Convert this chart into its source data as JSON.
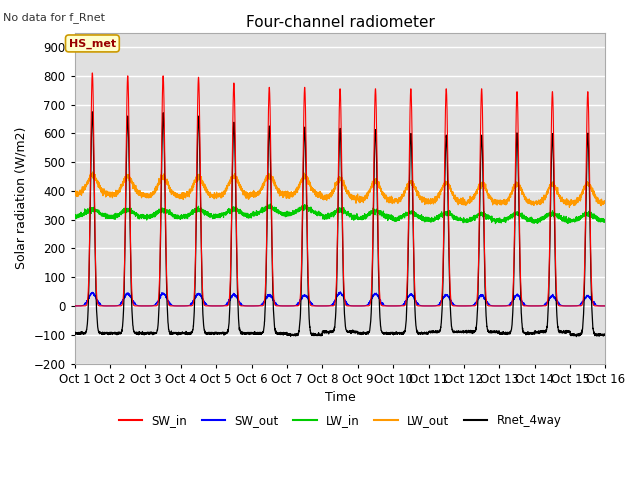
{
  "title": "Four-channel radiometer",
  "top_left_text": "No data for f_Rnet",
  "ylabel": "Solar radiation (W/m2)",
  "xlabel": "Time",
  "ylim": [
    -200,
    950
  ],
  "yticks": [
    -200,
    -100,
    0,
    100,
    200,
    300,
    400,
    500,
    600,
    700,
    800,
    900
  ],
  "xtick_labels": [
    "Oct 1",
    "Oct 2",
    "Oct 3",
    "Oct 4",
    "Oct 5",
    "Oct 6",
    "Oct 7",
    "Oct 8",
    "Oct 9",
    "Oct 10",
    "Oct 11",
    "Oct 12",
    "Oct 13",
    "Oct 14",
    "Oct 15",
    "Oct 16"
  ],
  "num_days": 15,
  "pts_per_day": 288,
  "legend": [
    {
      "label": "SW_in",
      "color": "#ff0000"
    },
    {
      "label": "SW_out",
      "color": "#0000ff"
    },
    {
      "label": "LW_in",
      "color": "#00cc00"
    },
    {
      "label": "LW_out",
      "color": "#ff9900"
    },
    {
      "label": "Rnet_4way",
      "color": "#000000"
    }
  ],
  "station_label": "HS_met",
  "background_color": "#e0e0e0",
  "grid_color": "#ffffff",
  "SW_in_peak_values": [
    810,
    800,
    800,
    795,
    775,
    760,
    760,
    755,
    755,
    755,
    755,
    755,
    745,
    745,
    745
  ],
  "SW_out_peak_values": [
    45,
    43,
    43,
    43,
    40,
    37,
    37,
    45,
    42,
    40,
    38,
    37,
    37,
    35,
    35
  ],
  "Rnet_peak_values": [
    670,
    660,
    670,
    660,
    640,
    625,
    620,
    615,
    610,
    600,
    595,
    590,
    600,
    595,
    600
  ],
  "Rnet_night_values": [
    -95,
    -95,
    -95,
    -95,
    -95,
    -95,
    -100,
    -90,
    -95,
    -95,
    -90,
    -90,
    -95,
    -90,
    -100
  ],
  "LW_in_base_values": [
    310,
    308,
    308,
    310,
    312,
    318,
    318,
    308,
    305,
    300,
    298,
    295,
    295,
    295,
    295
  ],
  "LW_out_base_values": [
    390,
    385,
    382,
    382,
    385,
    388,
    385,
    375,
    368,
    365,
    362,
    360,
    358,
    358,
    358
  ]
}
